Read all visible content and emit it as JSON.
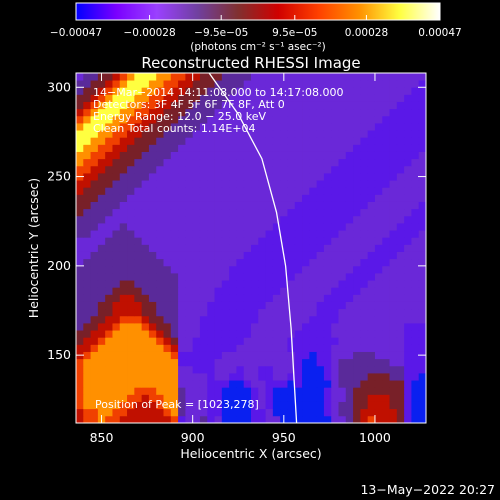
{
  "chart_data": {
    "type": "heatmap",
    "title": "Reconstructed RHESSI Image",
    "xlabel": "Heliocentric X (arcsec)",
    "ylabel": "Heliocentric Y (arcsec)",
    "xlim": [
      836,
      1028
    ],
    "ylim": [
      112,
      308
    ],
    "x_ticks": [
      850,
      900,
      950,
      1000
    ],
    "y_ticks": [
      150,
      200,
      250,
      300
    ],
    "colorbar": {
      "range": [
        -0.00047,
        0.00047
      ],
      "tick_values": [
        -0.00047,
        -0.00028,
        -9.5e-05,
        9.5e-05,
        0.00028,
        0.00047
      ],
      "tick_labels": [
        "−0.00047",
        "−0.00028",
        "−9.5e−05",
        "9.5e−05",
        "0.00028",
        "0.00047"
      ],
      "unit_label": "(photons cm⁻² s⁻¹ asec⁻²)",
      "colors": [
        "#0000ff",
        "#7a00ff",
        "#9a40ff",
        "#7040a0",
        "#803030",
        "#d00000",
        "#ff4000",
        "#ff9000",
        "#ffff40",
        "#ffffff"
      ]
    },
    "annotations": [
      "14−Mar−2014 14:11:08.000 to 14:17:08.000",
      "Detectors: 3F 4F 5F 6F 7F 8F, Att 0",
      "Energy Range: 12.0 − 25.0 keV",
      "Clean    Total counts: 1.14E+04"
    ],
    "peak_label": "Position of Peak = [1023,278]",
    "limb_points": [
      [
        909,
        308
      ],
      [
        925,
        285
      ],
      [
        938,
        260
      ],
      [
        946,
        230
      ],
      [
        951,
        200
      ],
      [
        954,
        165
      ],
      [
        957,
        112
      ]
    ],
    "grid_x_start": 836,
    "grid_y_start": 112,
    "cell_size": 4,
    "grid": [
      "FGGHGGFFFFFFFGBCCDBCAAAABBCCAAAAAAACCDEFGFFFEBAADFFDFFFFFFGH",
      "FGGHHGGFFFFFGHDCCCBBAAAABBCAAAAAAABCDDEFFFFFEBAADFFEFFFFFFGH",
      "GHHHHHGGFFFGHHDCCCBBAAAABCBAAAAAAABCDDEEFFFEEBAADEFEFFFFFFGH",
      "GHHHHHHGGFGGHHDCCCBBAAAABCBAAAAAAABCCDEEFFFEEBAADEFEFFFFFFGH",
      "GHHHHHHHGGGHHHDCCCBBAAAABCBAAAAAAABCCDEEEEEEEBAAEEEEFFFFFFGH",
      "GHHHHHHHHHHHHHCCCCBBBAABCCBBBABAAAACDDDEEEEEEBAAEEEEEFFFFFGH",
      "GHHHHHHHHHHHHHCCCCBCCBBCCBBCCBBAAABCDDDDEEEDDBBAEEEEEEEEEFGH",
      "GHHHHHHHHHHHHHCCBBBCCCBCCBBCCCBAAABCDDDDDDDDDBBBEEEEEEEEEFGH",
      "GHHHHHHHHHHHHHBBBBBCCCCCCCCCCCBAABBCDDDDDDDCCBBBEEEEEEEEEFGH",
      "FGHHHHHHHHHHHGBBBBBBCCCCCCCCCCBBABBCCCDDDCCCCBBBEEEEEEEEEFGH",
      "FFGHHHHHHHHHGFCCBBBBBBCCCCCCCBBBBBBCCCCCCCCCCBBBDEEEEEEEEFGH",
      "EFFGHHHHHHHGFECCBBBBBBBCCCCCCBBBBBBBCCCCCCCCCBBBDDEEEEEEEFGH",
      "EEFFGHHHHHGFEDCCCBBBBBBBCCCCCCBBBBBCCCCCCCCCCBBBDDDDEEEEEFGH",
      "DEEFFGHHHGFEEDCCCBBBBBBBCCCCCCCBBBBCCCCCCCCCCBBBDDDDDEEEEFGH",
      "DDEEFFGGGFEEDDCCCBBBBBBBBCCCCCCCBBBBCCCCCCCCCCCCDDDDDDEEFFGH",
      "DDDEEFFFFEEDDDCCCCBBBBBBBCCCCCCCCBBBCCCCCCCCCCCCDDDDDDDEFFGH",
      "DDDEEFFFFEEDDDCCCCBBBBBBBBCCCCCCCBBBBCCCCCCCCCCCDDDDDDDEFFGH",
      "DDDDEEFFEEDDDDCCCCCBBBBBBBBCCCCCCCBBBBCCCCCCCCCCCDDDDDDDEFGH",
      "DDDDDEEEEDDDDDCCCCCBBBBBBBBBCCCCCCCBBBBCCCCCCCCCCDDDDDDDEFGH",
      "DDDDDDEEDDDDDDCCCCCCBBBBBBBBBCCCCCCCBBBBCCCCCCCCCDDDDDDDEFGH",
      "DDDDDDDDDDDDDDCCCCCCCBBBBBBBBBCCCCCCCBBBBCCCCCCCCDDDDDDDEFFG",
      "DDDDDDDDDDDDDCCCCCCCCBBBBBBBBBBCCCCCCCBBBBCCCCCCCDDDDDDDEFFG",
      "CDDDDDDDDDDDCCCCCCCCCCBBBBBBBBBBCCCCCCCBBBBCCCCCCCDDDDDDEFFG",
      "CCDDDDDDDDDCCCCCCCCCCCCBBBBBBBBBBCCCCCCCBBBBCCCCCCDDDDDDEFFG",
      "CCCDDDDDDDCCCCCCCCCCCCCCBBBBBBBBBBCCCCCCCBBBBCCCCCCDDDDDEFFG",
      "CCCCDDDDDCCCCCCCCCCCCCCCCBBBBBBBBBBCCCCCCCBBBBCCCCCDDDDDEFFG",
      "DDCCCDDDCCCCCCCCCCCCCCCCCCBBBBBBBBBBCCCCCCCBBBBCCCCDDDDDEFFG",
      "DDDCCCDCCCCCCCCCCCCCCCCCCCCBBBBBBBBBBCCCCCCCBBBBCCCDDDDDEFFG",
      "DDDDCCCCCCCCCCCCCCCCCCCCCCCCBBBBBBBBBBCCCCCCCBBBBCCDDDDDEFFG",
      "EDDDDCCCCCCCCCCCCCCCCCCCCCCCCBBBBBBBBBBCCCCCCCBBBBCDDDDDEFFG",
      "EEDDDDCCCCCCCCCCCCCCCCCCCCCCCCBBBBBBBBBBCCCCCCCBBBBDDDDDEFFG",
      "EEEDDDDCCCCCCCCCCCCCCCCCCCCCCCCBBBBBBBBBBCCCCCCCBBBDDDDDEEFG",
      "FEEEDDDDCCCCCCCCCCCCCCCCCCCCCCCCBBBBBBBBBBCCCCCCCBBDDDDDEEFG",
      "FFEEEDDDDCCCCCCCCCCCCCCCCCCCCCCCCBBBBBBBBBBCCCCCCCBDDDDDEEFG",
      "GFFEEEDDDDCCCCCCCCCCCCCCCCCCCCCCCCBBBBBBBBBBCCCCCCDDDDDDEEFG",
      "GGFFEEEDDDDCCCCCCCCCCCCCCCCCCCCCCCCBBBBBBBBBBCCCCCDDDDDDEEFG",
      "HGGFFEEEDDDDCCCCCCCCCCCCCCCCCCCCCCCCBBBBBBBBBBCCCCDDDDDDEEFG",
      "HHGGFFEEEDDDDCCCCCCCCCCCCCCCCCCCCCCCCBBBBBBBBBBCCCDDDDDDEEFG",
      "IHHGGFFEEEDDDDCCCCCCCCCCCCCCCCCCCCCCCCBBBBBBBBBBCCDDDDDDEEFG",
      "IIHHGGFFEEEDDDDCCCCCCCCCCCCCCCCCCCCCCCCBBBBBBBBBBCDDDDDDEEFG",
      "IIIHHGGFFEEEDDDDCCCCCCCCCCCCCCCCCCCCCCCCBBBBBBBBBBDDDDDDEEFG",
      "HIIIHHGGFFEEEDDDDCCCCCCCCCCCCCCCCCCCCCCCCBBBBBBBBBDDDDDDEEFG",
      "GHIIIHHGGFFEEEDDDDCCCCCCCCCCCCCCCCCCCCCCCCBBBBBBBBDDDDDDEEFG",
      "FGHIIIHHGGFFEEEDDDDCCCCCCCCCCCCCCCCCCCCCCCCBBBBBBBDDDDDDEEFG",
      "EFGHIIIHHGGFFEEEDDDDCCCCCCCCCCCCCCCCCCCCCCCCBBBBBBDDDDDDEEFG",
      "EEFGHIIIHHGGFFEEEDDDDCCCCCCCCCCCCCCCCCCCCCCCCBBBBBDDDDDDEEFG",
      "DEEFGHIIIHHGGFFEEEDDDDCCCCCCCCCCCCCCCCCCCCCCCCBBBBDDDDDDEEFG",
      "DDEEFGHIIIHHGGFFEEEDDDDCCCCCCCCCCCCCCCCCCCCCCCCBBBDDDDDDEEFG",
      "CDDEEFGHIIIHHGGFFEEEDDDDCCCCCCCCCCCCCCCCCCCCCCCCBBDDDDDDEEFG"
    ]
  },
  "footer": {
    "date": "13−May−2022 20:27"
  }
}
